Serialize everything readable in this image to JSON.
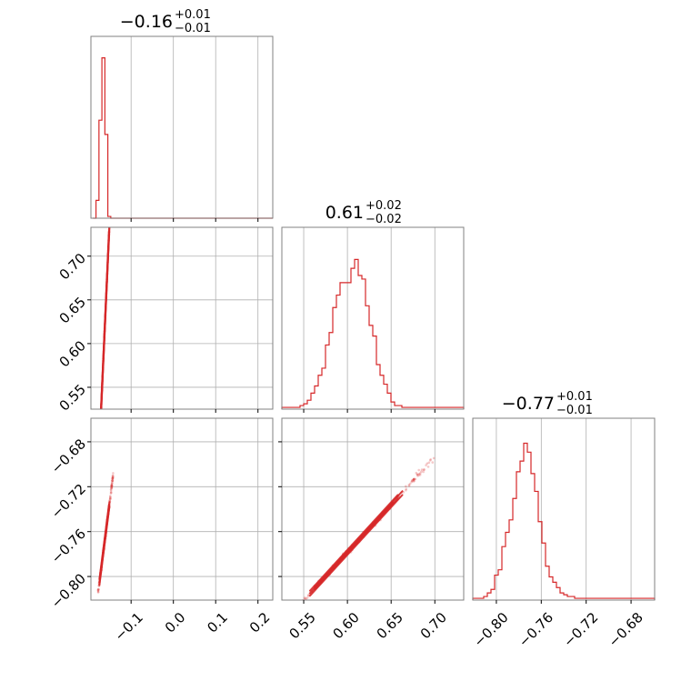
{
  "chart_data": {
    "type": "corner",
    "color": "#d62728",
    "grid": true,
    "parameters": [
      {
        "median": "−0.16",
        "plus": "+0.01",
        "minus": "−0.01",
        "range": [
          -0.195,
          0.235
        ],
        "ticks": [
          -0.1,
          0.0,
          0.1,
          0.2
        ],
        "tick_labels": [
          "−0.1",
          "0.0",
          "0.1",
          "0.2"
        ]
      },
      {
        "median": "0.61",
        "plus": "+0.02",
        "minus": "−0.02",
        "range": [
          0.525,
          0.733
        ],
        "ticks": [
          0.55,
          0.6,
          0.65,
          0.7
        ],
        "tick_labels": [
          "0.55",
          "0.60",
          "0.65",
          "0.70"
        ]
      },
      {
        "median": "−0.77",
        "plus": "+0.01",
        "minus": "−0.01",
        "range": [
          -0.821,
          -0.659
        ],
        "ticks": [
          -0.8,
          -0.76,
          -0.72,
          -0.68
        ],
        "tick_labels": [
          "−0.80",
          "−0.76",
          "−0.72",
          "−0.68"
        ]
      }
    ],
    "histograms": [
      {
        "edges": [
          -0.19,
          -0.183,
          -0.176,
          -0.169,
          -0.162,
          -0.155,
          -0.148,
          -0.141,
          0.235
        ],
        "counts": [
          0,
          0.1,
          0.55,
          0.9,
          0.47,
          0.01,
          0,
          0
        ]
      },
      {
        "x_start": 0.525,
        "bin_width": 0.00416,
        "counts": [
          0.01,
          0.01,
          0.01,
          0.01,
          0.01,
          0.02,
          0.03,
          0.05,
          0.09,
          0.13,
          0.19,
          0.23,
          0.36,
          0.43,
          0.57,
          0.64,
          0.71,
          0.71,
          0.71,
          0.79,
          0.84,
          0.75,
          0.73,
          0.58,
          0.47,
          0.41,
          0.25,
          0.19,
          0.14,
          0.09,
          0.04,
          0.02,
          0.02,
          0.01,
          0.01,
          0.01,
          0.01,
          0.01,
          0.01,
          0.01,
          0.01,
          0.01,
          0.01,
          0.01,
          0.01,
          0.01,
          0.01,
          0.01,
          0.01,
          0.01
        ]
      },
      {
        "x_start": -0.821,
        "bin_width": 0.00324,
        "counts": [
          0.01,
          0.01,
          0.01,
          0.02,
          0.04,
          0.06,
          0.14,
          0.17,
          0.3,
          0.38,
          0.45,
          0.57,
          0.72,
          0.78,
          0.88,
          0.83,
          0.71,
          0.61,
          0.44,
          0.32,
          0.19,
          0.13,
          0.1,
          0.07,
          0.04,
          0.03,
          0.02,
          0.02,
          0.01,
          0.01,
          0.01,
          0.01,
          0.01,
          0.01,
          0.01,
          0.01,
          0.01,
          0.01,
          0.01,
          0.01,
          0.01,
          0.01,
          0.01,
          0.01,
          0.01,
          0.01,
          0.01,
          0.01,
          0.01,
          0.01
        ]
      }
    ],
    "correlations": [
      {
        "x": 0,
        "y": 1,
        "center": [
          -0.163,
          0.61
        ],
        "slope": 10.7,
        "spread": 0.0026,
        "x_extent": [
          -0.178,
          -0.142
        ]
      },
      {
        "x": 0,
        "y": 2,
        "center": [
          -0.163,
          -0.77
        ],
        "slope": 2.95,
        "spread": 0.0016,
        "x_extent": [
          -0.178,
          -0.142
        ]
      },
      {
        "x": 1,
        "y": 2,
        "center": [
          0.61,
          -0.77
        ],
        "slope": 0.85,
        "spread": 0.0014,
        "x_extent": [
          0.54,
          0.7
        ]
      }
    ]
  }
}
